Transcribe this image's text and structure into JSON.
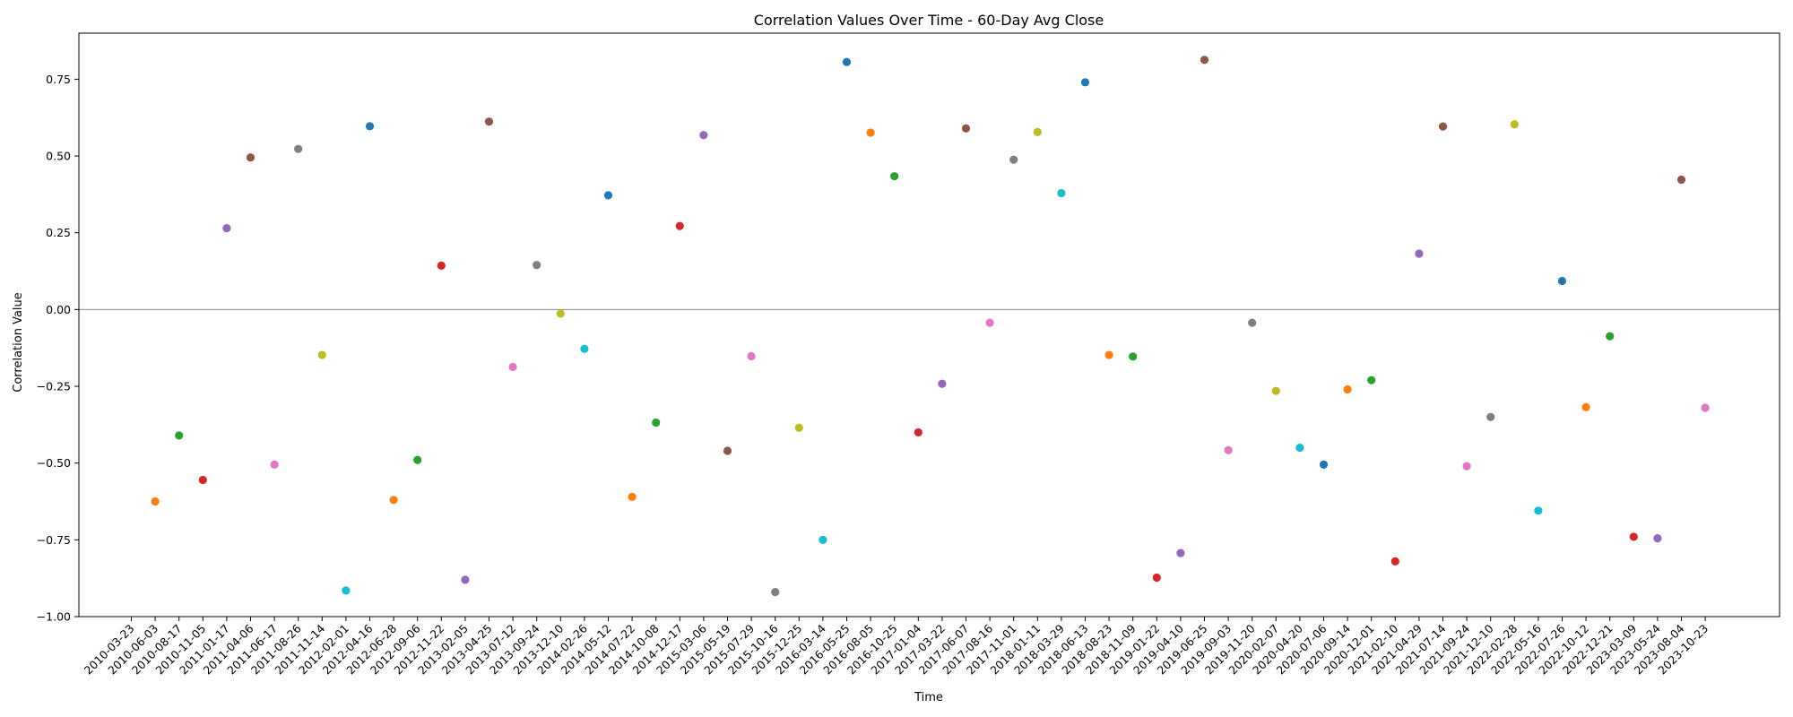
{
  "chart_data": {
    "type": "scatter",
    "title": "Correlation Values Over Time - 60-Day Avg Close",
    "xlabel": "Time",
    "ylabel": "Correlation Value",
    "ylim": [
      -1.0,
      0.9
    ],
    "yticks": [
      -1.0,
      -0.75,
      -0.5,
      -0.25,
      0.0,
      0.25,
      0.5,
      0.75
    ],
    "ytick_labels": [
      "−1.00",
      "−0.75",
      "−0.50",
      "−0.25",
      "0.00",
      "0.25",
      "0.50",
      "0.75"
    ],
    "zero_line": true,
    "grid": false,
    "colors": [
      "#1f77b4",
      "#ff7f0e",
      "#2ca02c",
      "#d62728",
      "#9467bd",
      "#8c564b",
      "#e377c2",
      "#7f7f7f",
      "#bcbd22",
      "#17becf"
    ],
    "x": [
      "2010-03-23",
      "2010-06-03",
      "2010-08-17",
      "2010-11-05",
      "2011-01-17",
      "2011-04-06",
      "2011-06-17",
      "2011-08-26",
      "2011-11-14",
      "2012-02-01",
      "2012-04-16",
      "2012-06-28",
      "2012-09-06",
      "2012-11-22",
      "2013-02-05",
      "2013-04-25",
      "2013-07-12",
      "2013-09-24",
      "2013-12-10",
      "2014-02-26",
      "2014-05-12",
      "2014-07-22",
      "2014-10-08",
      "2014-12-17",
      "2015-03-06",
      "2015-05-19",
      "2015-07-29",
      "2015-10-16",
      "2015-12-25",
      "2016-03-14",
      "2016-05-25",
      "2016-08-05",
      "2016-10-25",
      "2017-01-04",
      "2017-03-22",
      "2017-06-07",
      "2017-08-16",
      "2017-11-01",
      "2018-01-11",
      "2018-03-29",
      "2018-06-13",
      "2018-08-23",
      "2018-11-09",
      "2019-01-22",
      "2019-04-10",
      "2019-06-25",
      "2019-09-03",
      "2019-11-20",
      "2020-02-07",
      "2020-04-20",
      "2020-07-06",
      "2020-09-14",
      "2020-12-01",
      "2021-02-10",
      "2021-04-29",
      "2021-07-14",
      "2021-09-24",
      "2021-12-10",
      "2022-02-28",
      "2022-05-16",
      "2022-07-26",
      "2022-10-12",
      "2022-12-21",
      "2023-03-09",
      "2023-05-24",
      "2023-08-04",
      "2023-10-23"
    ],
    "points": [
      {
        "x": "2010-06-03",
        "y": -0.625,
        "color": "#ff7f0e"
      },
      {
        "x": "2010-08-17",
        "y": -0.41,
        "color": "#2ca02c"
      },
      {
        "x": "2010-11-05",
        "y": -0.555,
        "color": "#d62728"
      },
      {
        "x": "2011-01-17",
        "y": 0.265,
        "color": "#9467bd"
      },
      {
        "x": "2011-04-06",
        "y": 0.495,
        "color": "#8c564b"
      },
      {
        "x": "2011-06-17",
        "y": -0.505,
        "color": "#e377c2"
      },
      {
        "x": "2011-08-26",
        "y": 0.523,
        "color": "#7f7f7f"
      },
      {
        "x": "2011-11-14",
        "y": -0.148,
        "color": "#bcbd22"
      },
      {
        "x": "2012-02-01",
        "y": -0.915,
        "color": "#17becf"
      },
      {
        "x": "2012-04-16",
        "y": 0.597,
        "color": "#1f77b4"
      },
      {
        "x": "2012-06-28",
        "y": -0.62,
        "color": "#ff7f0e"
      },
      {
        "x": "2012-09-06",
        "y": -0.49,
        "color": "#2ca02c"
      },
      {
        "x": "2012-11-22",
        "y": 0.143,
        "color": "#d62728"
      },
      {
        "x": "2013-02-05",
        "y": -0.88,
        "color": "#9467bd"
      },
      {
        "x": "2013-04-25",
        "y": 0.612,
        "color": "#8c564b"
      },
      {
        "x": "2013-07-12",
        "y": -0.187,
        "color": "#e377c2"
      },
      {
        "x": "2013-09-24",
        "y": 0.145,
        "color": "#7f7f7f"
      },
      {
        "x": "2013-12-10",
        "y": -0.013,
        "color": "#bcbd22"
      },
      {
        "x": "2014-02-26",
        "y": -0.128,
        "color": "#17becf"
      },
      {
        "x": "2014-05-12",
        "y": 0.372,
        "color": "#1f77b4"
      },
      {
        "x": "2014-07-22",
        "y": -0.61,
        "color": "#ff7f0e"
      },
      {
        "x": "2014-10-08",
        "y": -0.368,
        "color": "#2ca02c"
      },
      {
        "x": "2014-12-17",
        "y": 0.272,
        "color": "#d62728"
      },
      {
        "x": "2015-03-06",
        "y": 0.568,
        "color": "#9467bd"
      },
      {
        "x": "2015-05-19",
        "y": -0.46,
        "color": "#8c564b"
      },
      {
        "x": "2015-07-29",
        "y": -0.152,
        "color": "#e377c2"
      },
      {
        "x": "2015-10-16",
        "y": -0.92,
        "color": "#7f7f7f"
      },
      {
        "x": "2015-12-25",
        "y": -0.385,
        "color": "#bcbd22"
      },
      {
        "x": "2016-03-14",
        "y": -0.75,
        "color": "#17becf"
      },
      {
        "x": "2016-05-25",
        "y": 0.806,
        "color": "#1f77b4"
      },
      {
        "x": "2016-08-05",
        "y": 0.576,
        "color": "#ff7f0e"
      },
      {
        "x": "2016-10-25",
        "y": 0.434,
        "color": "#2ca02c"
      },
      {
        "x": "2017-01-04",
        "y": -0.4,
        "color": "#d62728"
      },
      {
        "x": "2017-03-22",
        "y": -0.242,
        "color": "#9467bd"
      },
      {
        "x": "2017-06-07",
        "y": 0.59,
        "color": "#8c564b"
      },
      {
        "x": "2017-08-16",
        "y": -0.043,
        "color": "#e377c2"
      },
      {
        "x": "2017-11-01",
        "y": 0.488,
        "color": "#7f7f7f"
      },
      {
        "x": "2018-01-11",
        "y": 0.578,
        "color": "#bcbd22"
      },
      {
        "x": "2018-03-29",
        "y": 0.379,
        "color": "#17becf"
      },
      {
        "x": "2018-06-13",
        "y": 0.74,
        "color": "#1f77b4"
      },
      {
        "x": "2018-08-23",
        "y": -0.148,
        "color": "#ff7f0e"
      },
      {
        "x": "2018-11-09",
        "y": -0.153,
        "color": "#2ca02c"
      },
      {
        "x": "2019-01-22",
        "y": -0.873,
        "color": "#d62728"
      },
      {
        "x": "2019-04-10",
        "y": -0.793,
        "color": "#9467bd"
      },
      {
        "x": "2019-06-25",
        "y": 0.813,
        "color": "#8c564b"
      },
      {
        "x": "2019-09-03",
        "y": -0.458,
        "color": "#e377c2"
      },
      {
        "x": "2019-11-20",
        "y": -0.043,
        "color": "#7f7f7f"
      },
      {
        "x": "2020-02-07",
        "y": -0.265,
        "color": "#bcbd22"
      },
      {
        "x": "2020-04-20",
        "y": -0.45,
        "color": "#17becf"
      },
      {
        "x": "2020-07-06",
        "y": -0.505,
        "color": "#1f77b4"
      },
      {
        "x": "2020-09-14",
        "y": -0.26,
        "color": "#ff7f0e"
      },
      {
        "x": "2020-12-01",
        "y": -0.23,
        "color": "#2ca02c"
      },
      {
        "x": "2021-02-10",
        "y": -0.82,
        "color": "#d62728"
      },
      {
        "x": "2021-04-29",
        "y": 0.182,
        "color": "#9467bd"
      },
      {
        "x": "2021-07-14",
        "y": 0.596,
        "color": "#8c564b"
      },
      {
        "x": "2021-09-24",
        "y": -0.51,
        "color": "#e377c2"
      },
      {
        "x": "2021-12-10",
        "y": -0.35,
        "color": "#7f7f7f"
      },
      {
        "x": "2022-02-28",
        "y": 0.603,
        "color": "#bcbd22"
      },
      {
        "x": "2022-05-16",
        "y": -0.655,
        "color": "#17becf"
      },
      {
        "x": "2022-07-26",
        "y": 0.093,
        "color": "#1f77b4"
      },
      {
        "x": "2022-10-12",
        "y": -0.318,
        "color": "#ff7f0e"
      },
      {
        "x": "2022-12-21",
        "y": -0.087,
        "color": "#2ca02c"
      },
      {
        "x": "2023-03-09",
        "y": -0.74,
        "color": "#d62728"
      },
      {
        "x": "2023-05-24",
        "y": -0.745,
        "color": "#9467bd"
      },
      {
        "x": "2023-08-04",
        "y": 0.423,
        "color": "#8c564b"
      },
      {
        "x": "2023-10-23",
        "y": -0.32,
        "color": "#e377c2"
      }
    ]
  }
}
